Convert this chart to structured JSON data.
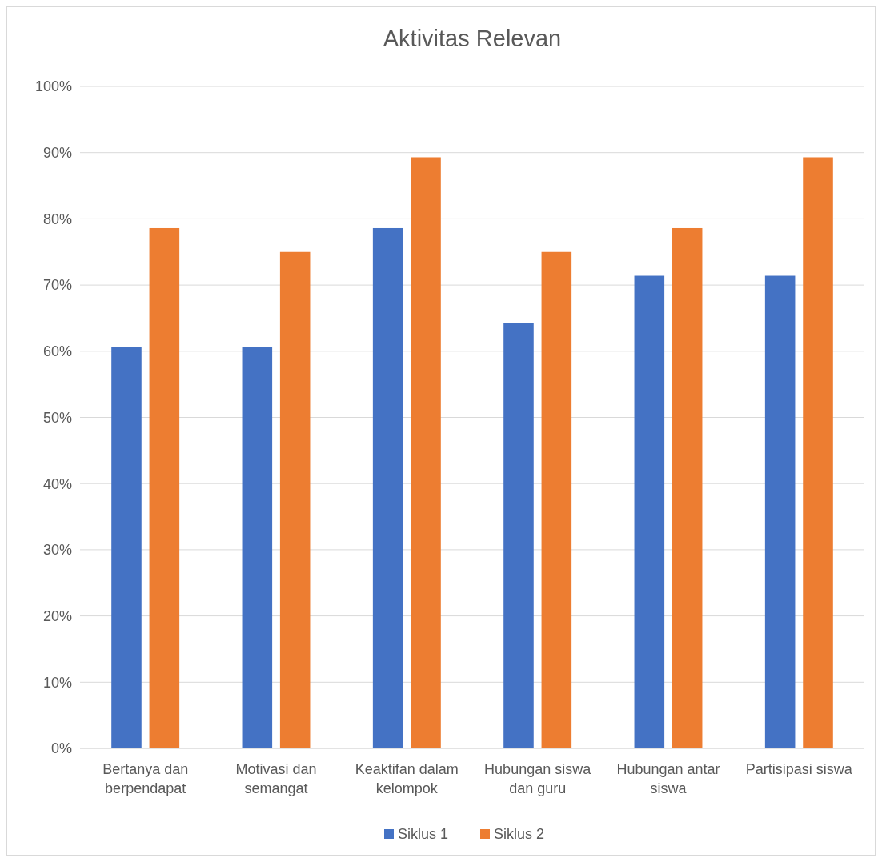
{
  "chart_data": {
    "type": "bar",
    "title": "Aktivitas Relevan",
    "categories": [
      "Bertanya dan berpendapat",
      "Motivasi dan semangat",
      "Keaktifan dalam kelompok",
      "Hubungan siswa dan guru",
      "Hubungan antar siswa",
      "Partisipasi siswa"
    ],
    "series": [
      {
        "name": "Siklus 1",
        "color": "#4472c4",
        "values": [
          60.7,
          60.7,
          78.6,
          64.3,
          71.4,
          71.4
        ]
      },
      {
        "name": "Siklus 2",
        "color": "#ed7d31",
        "values": [
          78.6,
          75,
          89.3,
          75,
          78.6,
          89.3
        ]
      }
    ],
    "ylim": [
      0,
      100
    ],
    "yticks": [
      {
        "value": 0,
        "label": "0%"
      },
      {
        "value": 10,
        "label": "10%"
      },
      {
        "value": 20,
        "label": "20%"
      },
      {
        "value": 30,
        "label": "30%"
      },
      {
        "value": 40,
        "label": "40%"
      },
      {
        "value": 50,
        "label": "50%"
      },
      {
        "value": 60,
        "label": "60%"
      },
      {
        "value": 70,
        "label": "70%"
      },
      {
        "value": 80,
        "label": "80%"
      },
      {
        "value": 90,
        "label": "90%"
      },
      {
        "value": 100,
        "label": "100%"
      }
    ],
    "grid": "y",
    "legend": "bottom"
  }
}
